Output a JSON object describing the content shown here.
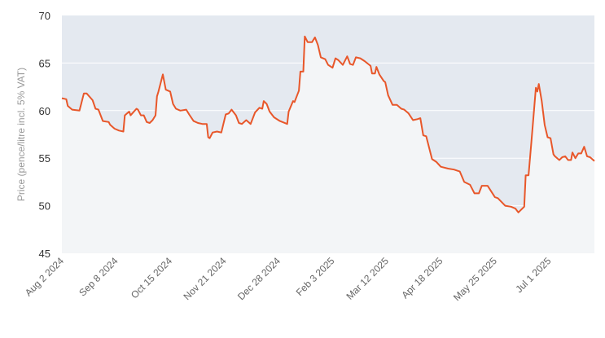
{
  "chart_data": {
    "type": "line",
    "title": "",
    "xlabel": "",
    "ylabel": "Price (pence/litre incl. 5% VAT)",
    "ylim": [
      45,
      70
    ],
    "yticks": [
      45,
      50,
      55,
      60,
      65,
      70
    ],
    "xlim": [
      "2024-08-02",
      "2025-08-01"
    ],
    "xticks": [
      {
        "date": "2024-08-02",
        "label": "Aug 2 2024"
      },
      {
        "date": "2024-09-08",
        "label": "Sep 8 2024"
      },
      {
        "date": "2024-10-15",
        "label": "Oct 15 2024"
      },
      {
        "date": "2024-11-21",
        "label": "Nov 21 2024"
      },
      {
        "date": "2024-12-28",
        "label": "Dec 28 2024"
      },
      {
        "date": "2025-02-03",
        "label": "Feb 3 2025"
      },
      {
        "date": "2025-03-12",
        "label": "Mar 12 2025"
      },
      {
        "date": "2025-04-18",
        "label": "Apr 18 2025"
      },
      {
        "date": "2025-05-25",
        "label": "May 25 2025"
      },
      {
        "date": "2025-07-01",
        "label": "Jul 1 2025"
      }
    ],
    "grid": true,
    "legend": "none",
    "colors": {
      "line": "#e8572a",
      "plot_background": "#e4e9f0",
      "area_fill": "#f3f5f7",
      "grid": "#ffffff"
    },
    "series": [
      {
        "points": [
          [
            "2024-08-02",
            61.3
          ],
          [
            "2024-08-05",
            61.2
          ],
          [
            "2024-08-06",
            60.5
          ],
          [
            "2024-08-09",
            60.1
          ],
          [
            "2024-08-14",
            60.0
          ],
          [
            "2024-08-17",
            61.8
          ],
          [
            "2024-08-19",
            61.8
          ],
          [
            "2024-08-23",
            61.1
          ],
          [
            "2024-08-25",
            60.2
          ],
          [
            "2024-08-27",
            60.1
          ],
          [
            "2024-08-30",
            58.9
          ],
          [
            "2024-09-03",
            58.8
          ],
          [
            "2024-09-04",
            58.5
          ],
          [
            "2024-09-07",
            58.1
          ],
          [
            "2024-09-10",
            57.9
          ],
          [
            "2024-09-13",
            57.8
          ],
          [
            "2024-09-14",
            59.5
          ],
          [
            "2024-09-17",
            59.9
          ],
          [
            "2024-09-18",
            59.5
          ],
          [
            "2024-09-22",
            60.2
          ],
          [
            "2024-09-23",
            60.1
          ],
          [
            "2024-09-25",
            59.5
          ],
          [
            "2024-09-27",
            59.5
          ],
          [
            "2024-09-29",
            58.8
          ],
          [
            "2024-10-01",
            58.7
          ],
          [
            "2024-10-03",
            59.0
          ],
          [
            "2024-10-05",
            59.5
          ],
          [
            "2024-10-06",
            61.5
          ],
          [
            "2024-10-07",
            62.0
          ],
          [
            "2024-10-10",
            63.8
          ],
          [
            "2024-10-12",
            62.2
          ],
          [
            "2024-10-15",
            62.0
          ],
          [
            "2024-10-17",
            60.7
          ],
          [
            "2024-10-19",
            60.2
          ],
          [
            "2024-10-22",
            60.0
          ],
          [
            "2024-10-26",
            60.1
          ],
          [
            "2024-10-28",
            59.6
          ],
          [
            "2024-10-31",
            58.9
          ],
          [
            "2024-11-03",
            58.7
          ],
          [
            "2024-11-06",
            58.6
          ],
          [
            "2024-11-09",
            58.6
          ],
          [
            "2024-11-10",
            57.2
          ],
          [
            "2024-11-11",
            57.1
          ],
          [
            "2024-11-13",
            57.7
          ],
          [
            "2024-11-16",
            57.8
          ],
          [
            "2024-11-19",
            57.7
          ],
          [
            "2024-11-22",
            59.6
          ],
          [
            "2024-11-24",
            59.7
          ],
          [
            "2024-11-26",
            60.1
          ],
          [
            "2024-11-29",
            59.5
          ],
          [
            "2024-12-01",
            58.7
          ],
          [
            "2024-12-03",
            58.6
          ],
          [
            "2024-12-06",
            59.0
          ],
          [
            "2024-12-09",
            58.6
          ],
          [
            "2024-12-12",
            59.8
          ],
          [
            "2024-12-15",
            60.3
          ],
          [
            "2024-12-17",
            60.2
          ],
          [
            "2024-12-18",
            61.0
          ],
          [
            "2024-12-20",
            60.7
          ],
          [
            "2024-12-22",
            59.9
          ],
          [
            "2024-12-25",
            59.3
          ],
          [
            "2024-12-29",
            58.9
          ],
          [
            "2025-01-03",
            58.6
          ],
          [
            "2025-01-04",
            59.9
          ],
          [
            "2025-01-07",
            61.0
          ],
          [
            "2025-01-08",
            60.9
          ],
          [
            "2025-01-11",
            62.1
          ],
          [
            "2025-01-12",
            64.1
          ],
          [
            "2025-01-14",
            64.1
          ],
          [
            "2025-01-15",
            67.8
          ],
          [
            "2025-01-17",
            67.2
          ],
          [
            "2025-01-20",
            67.2
          ],
          [
            "2025-01-22",
            67.7
          ],
          [
            "2025-01-24",
            66.9
          ],
          [
            "2025-01-26",
            65.6
          ],
          [
            "2025-01-29",
            65.4
          ],
          [
            "2025-01-31",
            64.8
          ],
          [
            "2025-02-03",
            64.5
          ],
          [
            "2025-02-05",
            65.5
          ],
          [
            "2025-02-07",
            65.3
          ],
          [
            "2025-02-10",
            64.8
          ],
          [
            "2025-02-13",
            65.7
          ],
          [
            "2025-02-15",
            64.9
          ],
          [
            "2025-02-17",
            64.8
          ],
          [
            "2025-02-19",
            65.6
          ],
          [
            "2025-02-22",
            65.5
          ],
          [
            "2025-02-25",
            65.2
          ],
          [
            "2025-03-01",
            64.7
          ],
          [
            "2025-03-02",
            63.9
          ],
          [
            "2025-03-04",
            63.9
          ],
          [
            "2025-03-05",
            64.6
          ],
          [
            "2025-03-07",
            63.8
          ],
          [
            "2025-03-10",
            63.1
          ],
          [
            "2025-03-11",
            63.0
          ],
          [
            "2025-03-13",
            61.6
          ],
          [
            "2025-03-16",
            60.6
          ],
          [
            "2025-03-19",
            60.6
          ],
          [
            "2025-03-22",
            60.2
          ],
          [
            "2025-03-24",
            60.1
          ],
          [
            "2025-03-27",
            59.7
          ],
          [
            "2025-03-30",
            59.0
          ],
          [
            "2025-04-02",
            59.1
          ],
          [
            "2025-04-04",
            59.2
          ],
          [
            "2025-04-06",
            57.4
          ],
          [
            "2025-04-08",
            57.3
          ],
          [
            "2025-04-12",
            54.9
          ],
          [
            "2025-04-15",
            54.6
          ],
          [
            "2025-04-18",
            54.1
          ],
          [
            "2025-04-23",
            53.9
          ],
          [
            "2025-04-27",
            53.8
          ],
          [
            "2025-05-01",
            53.6
          ],
          [
            "2025-05-04",
            52.5
          ],
          [
            "2025-05-08",
            52.2
          ],
          [
            "2025-05-11",
            51.3
          ],
          [
            "2025-05-14",
            51.3
          ],
          [
            "2025-05-16",
            52.1
          ],
          [
            "2025-05-20",
            52.1
          ],
          [
            "2025-05-25",
            50.9
          ],
          [
            "2025-05-27",
            50.8
          ],
          [
            "2025-06-01",
            50.0
          ],
          [
            "2025-06-05",
            49.9
          ],
          [
            "2025-06-08",
            49.7
          ],
          [
            "2025-06-10",
            49.3
          ],
          [
            "2025-06-14",
            49.9
          ],
          [
            "2025-06-15",
            53.2
          ],
          [
            "2025-06-17",
            53.2
          ],
          [
            "2025-06-19",
            56.8
          ],
          [
            "2025-06-22",
            62.4
          ],
          [
            "2025-06-23",
            62.0
          ],
          [
            "2025-06-24",
            62.8
          ],
          [
            "2025-06-26",
            61.0
          ],
          [
            "2025-06-28",
            58.5
          ],
          [
            "2025-06-30",
            57.2
          ],
          [
            "2025-07-02",
            57.1
          ],
          [
            "2025-07-04",
            55.4
          ],
          [
            "2025-07-05",
            55.2
          ],
          [
            "2025-07-08",
            54.8
          ],
          [
            "2025-07-10",
            55.1
          ],
          [
            "2025-07-12",
            55.2
          ],
          [
            "2025-07-14",
            54.8
          ],
          [
            "2025-07-16",
            54.8
          ],
          [
            "2025-07-17",
            55.6
          ],
          [
            "2025-07-19",
            55.0
          ],
          [
            "2025-07-21",
            55.5
          ],
          [
            "2025-07-23",
            55.5
          ],
          [
            "2025-07-25",
            56.2
          ],
          [
            "2025-07-27",
            55.2
          ],
          [
            "2025-07-29",
            55.1
          ],
          [
            "2025-08-01",
            54.7
          ]
        ]
      }
    ]
  }
}
